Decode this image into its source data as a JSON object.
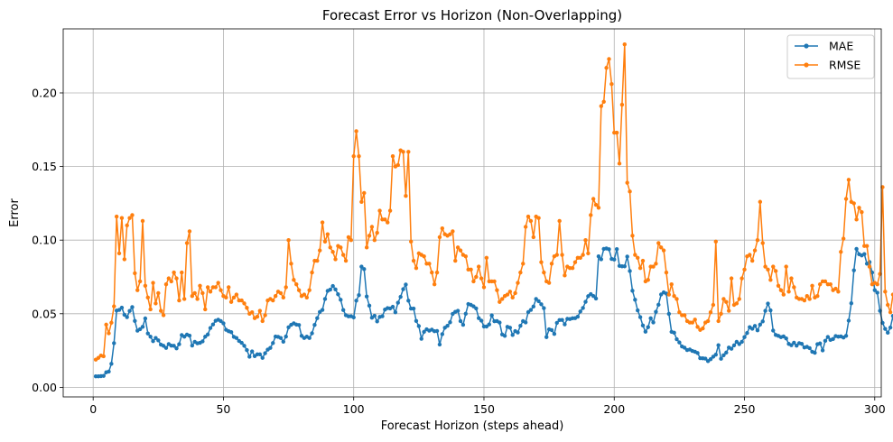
{
  "chart_data": {
    "type": "line",
    "title": "Forecast Error vs Horizon (Non-Overlapping)",
    "xlabel": "Forecast Horizon (steps ahead)",
    "ylabel": "Error",
    "xlim": [
      -11.5,
      302.5
    ],
    "ylim": [
      -0.0065,
      0.2435
    ],
    "xticks": [
      0,
      50,
      100,
      150,
      200,
      250,
      300
    ],
    "xtick_labels": [
      "0",
      "50",
      "100",
      "150",
      "200",
      "250",
      "300"
    ],
    "yticks": [
      0.0,
      0.05,
      0.1,
      0.15,
      0.2
    ],
    "ytick_labels": [
      "0.00",
      "0.05",
      "0.10",
      "0.15",
      "0.20"
    ],
    "grid": true,
    "legend_position": "top-right",
    "x_start": 1,
    "x_step": 1,
    "series": [
      {
        "name": "MAE",
        "color": "#1f77b4",
        "marker": "circle",
        "values": [
          0.0075,
          0.0075,
          0.0076,
          0.0078,
          0.0102,
          0.0107,
          0.016,
          0.03,
          0.0521,
          0.0526,
          0.0541,
          0.0493,
          0.0477,
          0.0519,
          0.0545,
          0.0451,
          0.0385,
          0.0395,
          0.0411,
          0.0468,
          0.0366,
          0.0344,
          0.0314,
          0.0335,
          0.0319,
          0.029,
          0.0282,
          0.0268,
          0.0294,
          0.0283,
          0.0282,
          0.0265,
          0.0293,
          0.0355,
          0.0344,
          0.0358,
          0.0351,
          0.0284,
          0.0309,
          0.0299,
          0.0302,
          0.0312,
          0.0344,
          0.0359,
          0.0403,
          0.0427,
          0.0452,
          0.0459,
          0.045,
          0.0435,
          0.0391,
          0.0381,
          0.0375,
          0.0343,
          0.0335,
          0.0315,
          0.0302,
          0.0282,
          0.0253,
          0.0208,
          0.0244,
          0.0212,
          0.0224,
          0.0224,
          0.02,
          0.0232,
          0.0256,
          0.0268,
          0.0301,
          0.0345,
          0.0343,
          0.0335,
          0.031,
          0.0345,
          0.0408,
          0.0425,
          0.0435,
          0.0426,
          0.0423,
          0.035,
          0.0335,
          0.0344,
          0.0335,
          0.0367,
          0.0424,
          0.047,
          0.0512,
          0.0526,
          0.06,
          0.0655,
          0.0664,
          0.0688,
          0.0665,
          0.0632,
          0.0595,
          0.0525,
          0.049,
          0.0482,
          0.0483,
          0.0475,
          0.0589,
          0.0626,
          0.082,
          0.0803,
          0.0617,
          0.0555,
          0.0473,
          0.0486,
          0.0448,
          0.0478,
          0.0483,
          0.0528,
          0.0538,
          0.0536,
          0.0547,
          0.051,
          0.0575,
          0.0615,
          0.0667,
          0.0698,
          0.0589,
          0.0535,
          0.0535,
          0.0451,
          0.0416,
          0.033,
          0.0377,
          0.0394,
          0.0385,
          0.0392,
          0.0381,
          0.0383,
          0.0291,
          0.0361,
          0.0405,
          0.0418,
          0.0442,
          0.0499,
          0.0513,
          0.052,
          0.045,
          0.0425,
          0.05,
          0.0566,
          0.056,
          0.055,
          0.0536,
          0.047,
          0.0453,
          0.0413,
          0.0413,
          0.0427,
          0.0489,
          0.0449,
          0.045,
          0.044,
          0.0359,
          0.035,
          0.0411,
          0.0405,
          0.0356,
          0.0382,
          0.0373,
          0.0418,
          0.045,
          0.0441,
          0.0511,
          0.0526,
          0.0549,
          0.06,
          0.0585,
          0.0564,
          0.0538,
          0.0341,
          0.0394,
          0.0389,
          0.0363,
          0.0438,
          0.0457,
          0.0458,
          0.0428,
          0.0465,
          0.0464,
          0.0469,
          0.047,
          0.048,
          0.0515,
          0.0539,
          0.0581,
          0.0619,
          0.0633,
          0.062,
          0.0603,
          0.089,
          0.087,
          0.094,
          0.0943,
          0.0938,
          0.0872,
          0.0868,
          0.0939,
          0.0825,
          0.0822,
          0.0822,
          0.0888,
          0.079,
          0.0656,
          0.0595,
          0.0523,
          0.0477,
          0.042,
          0.0378,
          0.0409,
          0.0469,
          0.0441,
          0.0513,
          0.0561,
          0.0631,
          0.0645,
          0.0637,
          0.0499,
          0.0377,
          0.0371,
          0.0327,
          0.0305,
          0.0278,
          0.0269,
          0.0253,
          0.0257,
          0.0247,
          0.0242,
          0.0233,
          0.0198,
          0.0197,
          0.0195,
          0.0178,
          0.0191,
          0.0208,
          0.0222,
          0.0286,
          0.0194,
          0.0218,
          0.0236,
          0.027,
          0.0262,
          0.0285,
          0.0309,
          0.0294,
          0.0309,
          0.0341,
          0.0369,
          0.0409,
          0.0398,
          0.0417,
          0.0387,
          0.0426,
          0.0448,
          0.052,
          0.0569,
          0.0523,
          0.0386,
          0.0356,
          0.035,
          0.0341,
          0.0346,
          0.0332,
          0.0295,
          0.0286,
          0.0303,
          0.0283,
          0.03,
          0.0295,
          0.0271,
          0.0275,
          0.0266,
          0.0242,
          0.0235,
          0.0293,
          0.0298,
          0.0251,
          0.0316,
          0.0342,
          0.0322,
          0.0328,
          0.0348,
          0.0344,
          0.0346,
          0.0338,
          0.035,
          0.0453,
          0.0571,
          0.0795,
          0.094,
          0.0904,
          0.0896,
          0.0905,
          0.084,
          0.0851,
          0.078,
          0.066,
          0.0643,
          0.052,
          0.0438,
          0.0397,
          0.0371,
          0.0406,
          0.0485,
          0.0365,
          0.0326,
          0.0326,
          0.0376
        ]
      },
      {
        "name": "RMSE",
        "color": "#ff7f0e",
        "marker": "circle",
        "values": [
          0.0188,
          0.02,
          0.0216,
          0.0211,
          0.0426,
          0.0367,
          0.0439,
          0.055,
          0.116,
          0.091,
          0.115,
          0.087,
          0.11,
          0.115,
          0.117,
          0.0775,
          0.066,
          0.072,
          0.113,
          0.069,
          0.061,
          0.053,
          0.071,
          0.057,
          0.064,
          0.052,
          0.049,
          0.07,
          0.074,
          0.072,
          0.078,
          0.074,
          0.059,
          0.078,
          0.06,
          0.098,
          0.106,
          0.062,
          0.064,
          0.06,
          0.069,
          0.064,
          0.053,
          0.068,
          0.065,
          0.068,
          0.068,
          0.071,
          0.066,
          0.062,
          0.061,
          0.068,
          0.058,
          0.061,
          0.063,
          0.059,
          0.059,
          0.057,
          0.054,
          0.05,
          0.051,
          0.047,
          0.048,
          0.052,
          0.045,
          0.049,
          0.059,
          0.06,
          0.059,
          0.062,
          0.065,
          0.064,
          0.061,
          0.068,
          0.1,
          0.084,
          0.073,
          0.07,
          0.066,
          0.062,
          0.063,
          0.061,
          0.066,
          0.078,
          0.086,
          0.086,
          0.093,
          0.112,
          0.099,
          0.104,
          0.095,
          0.092,
          0.087,
          0.096,
          0.095,
          0.09,
          0.086,
          0.102,
          0.1,
          0.157,
          0.174,
          0.157,
          0.126,
          0.132,
          0.095,
          0.103,
          0.109,
          0.1,
          0.105,
          0.12,
          0.114,
          0.114,
          0.112,
          0.12,
          0.157,
          0.15,
          0.151,
          0.161,
          0.16,
          0.13,
          0.16,
          0.099,
          0.086,
          0.081,
          0.091,
          0.09,
          0.089,
          0.084,
          0.084,
          0.078,
          0.07,
          0.078,
          0.102,
          0.108,
          0.104,
          0.103,
          0.104,
          0.106,
          0.086,
          0.095,
          0.093,
          0.09,
          0.089,
          0.08,
          0.08,
          0.072,
          0.075,
          0.082,
          0.074,
          0.068,
          0.088,
          0.072,
          0.072,
          0.072,
          0.066,
          0.058,
          0.06,
          0.062,
          0.063,
          0.065,
          0.061,
          0.064,
          0.071,
          0.078,
          0.084,
          0.109,
          0.116,
          0.113,
          0.102,
          0.116,
          0.115,
          0.085,
          0.078,
          0.072,
          0.071,
          0.084,
          0.089,
          0.09,
          0.113,
          0.09,
          0.076,
          0.082,
          0.081,
          0.081,
          0.085,
          0.088,
          0.088,
          0.09,
          0.1,
          0.091,
          0.117,
          0.128,
          0.124,
          0.122,
          0.191,
          0.194,
          0.217,
          0.223,
          0.206,
          0.173,
          0.173,
          0.152,
          0.192,
          0.233,
          0.139,
          0.133,
          0.103,
          0.09,
          0.088,
          0.081,
          0.086,
          0.072,
          0.073,
          0.082,
          0.082,
          0.084,
          0.098,
          0.095,
          0.093,
          0.078,
          0.063,
          0.07,
          0.062,
          0.06,
          0.051,
          0.049,
          0.049,
          0.045,
          0.044,
          0.044,
          0.046,
          0.041,
          0.039,
          0.04,
          0.044,
          0.045,
          0.051,
          0.056,
          0.099,
          0.045,
          0.05,
          0.06,
          0.058,
          0.052,
          0.074,
          0.056,
          0.057,
          0.06,
          0.074,
          0.08,
          0.089,
          0.09,
          0.086,
          0.093,
          0.1,
          0.126,
          0.098,
          0.082,
          0.08,
          0.073,
          0.082,
          0.079,
          0.069,
          0.066,
          0.063,
          0.082,
          0.065,
          0.074,
          0.068,
          0.061,
          0.06,
          0.06,
          0.059,
          0.062,
          0.06,
          0.069,
          0.061,
          0.062,
          0.07,
          0.072,
          0.072,
          0.07,
          0.07,
          0.066,
          0.067,
          0.065,
          0.092,
          0.101,
          0.128,
          0.141,
          0.126,
          0.125,
          0.114,
          0.122,
          0.119,
          0.096,
          0.096,
          0.082,
          0.07,
          0.071,
          0.07,
          0.077,
          0.136,
          0.065,
          0.056,
          0.051,
          0.063
        ]
      }
    ]
  }
}
